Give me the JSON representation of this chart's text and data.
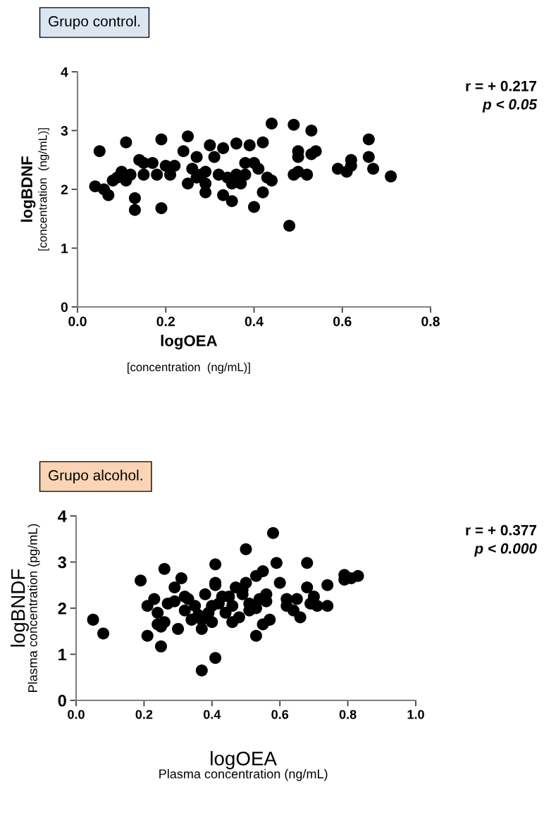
{
  "chart_data": [
    {
      "type": "scatter",
      "title": "Grupo control.",
      "xlabel": "logOEA\n[concentration  (ng/mL)]",
      "ylabel": "logBDNF\n[concentration  (ng/mL)]",
      "annotations": [
        "r = + 0.217",
        "p < 0.05"
      ],
      "marker": "circle",
      "grid": false,
      "legend": false,
      "xlim": [
        0,
        0.8
      ],
      "xticks": [
        {
          "value": 0,
          "label": "0.0"
        },
        {
          "value": 0.2,
          "label": "0.2"
        },
        {
          "value": 0.4,
          "label": "0.4"
        },
        {
          "value": 0.6,
          "label": "0.6"
        },
        {
          "value": 0.8,
          "label": "0.8"
        }
      ],
      "ylim": [
        0,
        4
      ],
      "yticks": [
        0,
        1,
        2,
        3,
        4
      ],
      "series": [
        {
          "color": "#000000",
          "x": [
            0.04,
            0.05,
            0.06,
            0.07,
            0.08,
            0.09,
            0.1,
            0.11,
            0.11,
            0.12,
            0.13,
            0.13,
            0.14,
            0.15,
            0.15,
            0.17,
            0.18,
            0.19,
            0.19,
            0.2,
            0.21,
            0.22,
            0.24,
            0.25,
            0.25,
            0.26,
            0.27,
            0.27,
            0.28,
            0.29,
            0.29,
            0.29,
            0.3,
            0.31,
            0.32,
            0.33,
            0.33,
            0.34,
            0.35,
            0.35,
            0.36,
            0.36,
            0.37,
            0.38,
            0.38,
            0.39,
            0.4,
            0.4,
            0.41,
            0.42,
            0.42,
            0.43,
            0.44,
            0.44,
            0.48,
            0.49,
            0.49,
            0.5,
            0.5,
            0.5,
            0.52,
            0.53,
            0.53,
            0.54,
            0.59,
            0.61,
            0.62,
            0.62,
            0.66,
            0.66,
            0.67,
            0.71
          ],
          "values": [
            2.05,
            2.65,
            2.0,
            1.9,
            2.15,
            2.2,
            2.3,
            2.8,
            2.15,
            2.25,
            1.85,
            1.65,
            2.5,
            2.45,
            2.25,
            2.45,
            2.25,
            2.85,
            1.68,
            2.4,
            2.25,
            2.4,
            2.65,
            2.9,
            2.1,
            2.35,
            2.2,
            2.55,
            2.25,
            2.3,
            2.1,
            1.95,
            2.75,
            2.55,
            2.25,
            2.7,
            1.9,
            2.2,
            2.1,
            1.8,
            2.25,
            2.78,
            2.1,
            2.25,
            2.45,
            2.75,
            2.45,
            1.7,
            2.35,
            2.8,
            1.95,
            2.2,
            3.12,
            2.15,
            1.38,
            3.1,
            2.25,
            2.65,
            2.55,
            2.3,
            2.25,
            3.0,
            2.6,
            2.65,
            2.35,
            2.3,
            2.5,
            2.4,
            2.85,
            2.55,
            2.35,
            2.22
          ]
        }
      ]
    },
    {
      "type": "scatter",
      "title": "Grupo alcohol.",
      "xlabel": "logOEA\nPlasma concentration (ng/mL)",
      "ylabel": "logBNDF\nPlasma concentration (pg/mL)",
      "annotations": [
        "r = + 0.377",
        "p < 0.000"
      ],
      "marker": "circle",
      "grid": false,
      "legend": false,
      "xlim": [
        0,
        1
      ],
      "xticks": [
        {
          "value": 0,
          "label": "0.0"
        },
        {
          "value": 0.2,
          "label": "0.2"
        },
        {
          "value": 0.4,
          "label": "0.4"
        },
        {
          "value": 0.6,
          "label": "0.6"
        },
        {
          "value": 0.8,
          "label": "0.8"
        },
        {
          "value": 1,
          "label": "1.0"
        }
      ],
      "ylim": [
        0,
        4
      ],
      "yticks": [
        0,
        1,
        2,
        3,
        4
      ],
      "series": [
        {
          "color": "#000000",
          "x": [
            0.05,
            0.08,
            0.19,
            0.21,
            0.21,
            0.23,
            0.24,
            0.24,
            0.25,
            0.25,
            0.26,
            0.26,
            0.27,
            0.29,
            0.29,
            0.3,
            0.31,
            0.32,
            0.32,
            0.33,
            0.34,
            0.35,
            0.36,
            0.37,
            0.37,
            0.37,
            0.38,
            0.39,
            0.4,
            0.4,
            0.41,
            0.41,
            0.41,
            0.41,
            0.42,
            0.43,
            0.44,
            0.45,
            0.46,
            0.46,
            0.47,
            0.48,
            0.49,
            0.49,
            0.5,
            0.5,
            0.51,
            0.51,
            0.53,
            0.53,
            0.53,
            0.54,
            0.55,
            0.55,
            0.56,
            0.56,
            0.57,
            0.58,
            0.59,
            0.6,
            0.62,
            0.62,
            0.64,
            0.65,
            0.66,
            0.68,
            0.68,
            0.69,
            0.7,
            0.71,
            0.74,
            0.74,
            0.79,
            0.79,
            0.81,
            0.83
          ],
          "values": [
            1.75,
            1.45,
            2.6,
            1.4,
            2.05,
            2.2,
            1.9,
            1.65,
            1.6,
            1.17,
            2.85,
            1.7,
            2.1,
            2.45,
            2.15,
            1.55,
            2.65,
            2.25,
            1.95,
            2.2,
            1.75,
            2.05,
            1.85,
            1.75,
            0.65,
            1.55,
            2.3,
            1.9,
            2.05,
            1.7,
            2.95,
            2.55,
            2.5,
            0.92,
            2.1,
            2.25,
            1.9,
            2.25,
            1.7,
            2.05,
            2.45,
            1.8,
            2.3,
            2.4,
            3.28,
            2.55,
            2.1,
            1.95,
            1.4,
            2.7,
            2.0,
            2.2,
            2.8,
            1.65,
            2.3,
            2.15,
            1.75,
            3.63,
            2.98,
            2.55,
            2.2,
            2.05,
            1.95,
            2.2,
            1.8,
            2.98,
            2.45,
            2.1,
            2.25,
            2.05,
            2.5,
            2.05,
            2.62,
            2.72,
            2.65,
            2.7
          ]
        }
      ]
    }
  ]
}
